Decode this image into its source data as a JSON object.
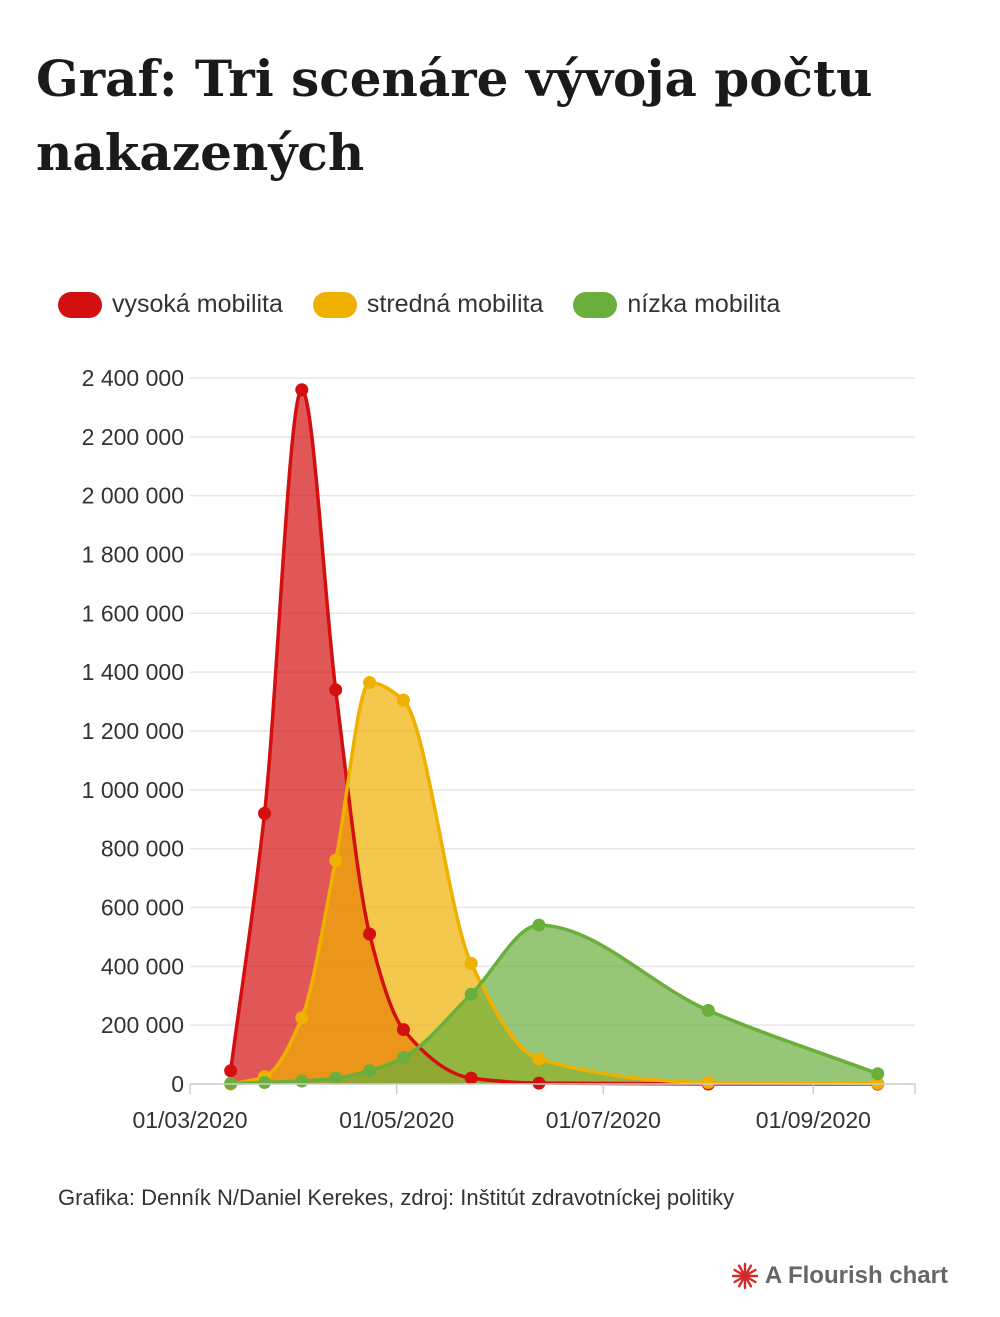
{
  "title": "Graf: Tri scenáre vývoja počtu nakazených",
  "source": "Grafika: Denník N/Daniel Kerekes, zdroj: Inštitút zdravotníckej politiky",
  "credit": "A Flourish chart",
  "colors": {
    "vysoka": "#d40f0f",
    "stredna": "#f0b000",
    "nizka": "#6aae3c",
    "credit_icon": "#d12b2b"
  },
  "chart_data": {
    "type": "area",
    "xlabel": "",
    "ylabel": "",
    "ylim": [
      0,
      2400000
    ],
    "y_ticks": [
      0,
      200000,
      400000,
      600000,
      800000,
      1000000,
      1200000,
      1400000,
      1600000,
      1800000,
      2000000,
      2200000,
      2400000
    ],
    "y_tick_labels": [
      "0",
      "200 000",
      "400 000",
      "600 000",
      "800 000",
      "1 000 000",
      "1 200 000",
      "1 400 000",
      "1 600 000",
      "1 800 000",
      "2 000 000",
      "2 200 000",
      "2 400 000"
    ],
    "xlim": [
      "2020-03-01",
      "2020-10-01"
    ],
    "x_ticks": [
      "2020-03-01",
      "2020-05-01",
      "2020-07-01",
      "2020-09-01"
    ],
    "x_tick_labels": [
      "01/03/2020",
      "01/05/2020",
      "01/07/2020",
      "01/09/2020"
    ],
    "grid": true,
    "legend_position": "top-left",
    "series": [
      {
        "name": "vysoká mobilita",
        "color": "#d40f0f",
        "points": [
          [
            "2020-03-13",
            45000
          ],
          [
            "2020-03-23",
            920000
          ],
          [
            "2020-04-03",
            2360000
          ],
          [
            "2020-04-13",
            1340000
          ],
          [
            "2020-04-23",
            510000
          ],
          [
            "2020-05-03",
            185000
          ],
          [
            "2020-05-23",
            20000
          ],
          [
            "2020-06-12",
            3000
          ],
          [
            "2020-08-01",
            0
          ],
          [
            "2020-09-20",
            0
          ]
        ]
      },
      {
        "name": "stredná mobilita",
        "color": "#f0b000",
        "points": [
          [
            "2020-03-13",
            0
          ],
          [
            "2020-03-23",
            25000
          ],
          [
            "2020-04-03",
            225000
          ],
          [
            "2020-04-13",
            760000
          ],
          [
            "2020-04-23",
            1365000
          ],
          [
            "2020-05-03",
            1305000
          ],
          [
            "2020-05-23",
            410000
          ],
          [
            "2020-06-12",
            85000
          ],
          [
            "2020-08-01",
            5000
          ],
          [
            "2020-09-20",
            2000
          ]
        ]
      },
      {
        "name": "nízka mobilita",
        "color": "#6aae3c",
        "points": [
          [
            "2020-03-13",
            2000
          ],
          [
            "2020-03-23",
            5000
          ],
          [
            "2020-04-03",
            10000
          ],
          [
            "2020-04-13",
            20000
          ],
          [
            "2020-04-23",
            45000
          ],
          [
            "2020-05-03",
            90000
          ],
          [
            "2020-05-23",
            305000
          ],
          [
            "2020-06-12",
            540000
          ],
          [
            "2020-08-01",
            250000
          ],
          [
            "2020-09-20",
            35000
          ]
        ]
      }
    ]
  }
}
